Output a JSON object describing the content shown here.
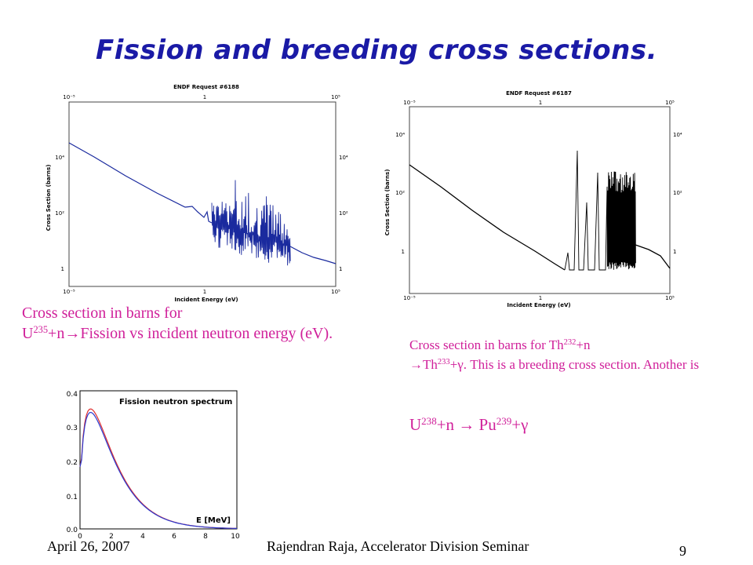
{
  "slide": {
    "title": "Fission and breeding cross sections.",
    "footer_date": "April 26, 2007",
    "footer_center": "Rajendran Raja, Accelerator Division Seminar",
    "page_number": "9"
  },
  "plot_left": {
    "request": "ENDF Request #6188",
    "ylabel": "Cross Section (barns)",
    "xlabel": "Incident Energy (eV)",
    "x_ticks": [
      "10⁻⁵",
      "1",
      "10⁵"
    ],
    "y_ticks": [
      "10⁴",
      "10²",
      "1"
    ],
    "line_color": "#1a2a9e"
  },
  "plot_right": {
    "request": "ENDF Request #6187",
    "ylabel": "Cross Section (barns)",
    "xlabel": "Incident Energy (eV)",
    "x_ticks": [
      "10⁻⁵",
      "1",
      "10⁵"
    ],
    "y_ticks": [
      "10⁴",
      "10²",
      "1"
    ],
    "line_color": "#000000"
  },
  "plot_spectrum": {
    "title": "Fission neutron spectrum",
    "xlabel": "E [MeV]",
    "x_ticks": [
      "0",
      "2",
      "4",
      "6",
      "8",
      "10"
    ],
    "y_ticks": [
      "0.0",
      "0.1",
      "0.2",
      "0.3",
      "0.4"
    ]
  },
  "caption1": {
    "line1": "Cross section in barns for",
    "u": "U",
    "mass": "235",
    "rest": "+n",
    "arrow": "→",
    "tail": "Fission vs incident neutron energy (eV)."
  },
  "caption2": {
    "lead": "Cross section in barns for Th",
    "m1": "232",
    "plus_n": "+n",
    "arrow": "→",
    "th": "Th",
    "m2": "233",
    "plus": "+",
    "gamma": "γ",
    "tail": ". This is a breeding cross section. Another is"
  },
  "caption3": {
    "u": "U",
    "m1": "238",
    "plus_n": "+n ",
    "arrow": "→",
    "pu": " Pu",
    "m2": "239",
    "plus": "+",
    "gamma": "γ"
  },
  "colors": {
    "title": "#1a1aa6",
    "caption": "#d0209a",
    "spectrum_red": "#e03030",
    "spectrum_blue": "#2a3ad0"
  }
}
